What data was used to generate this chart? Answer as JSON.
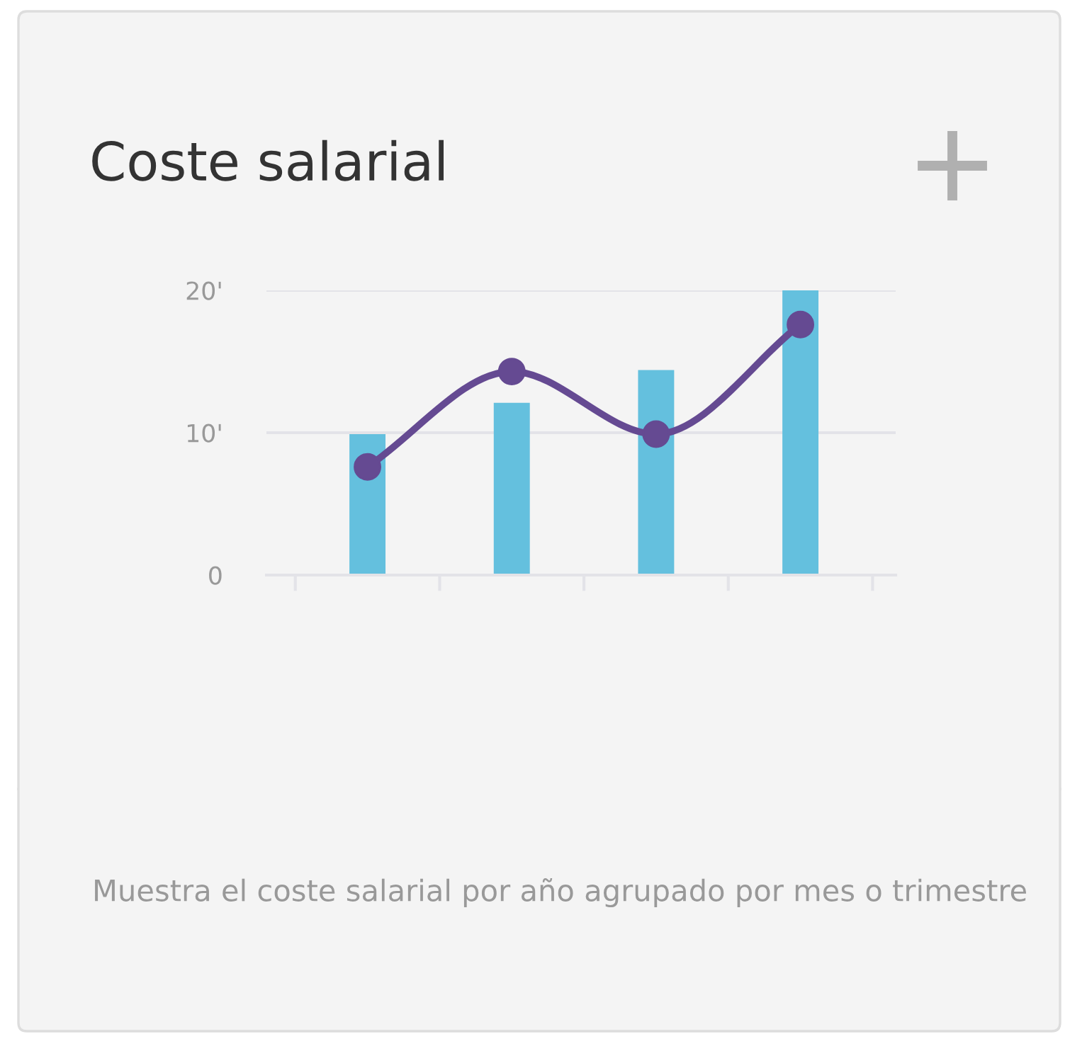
{
  "chart_data": {
    "type": "bar",
    "title": "Coste salarial",
    "categories": [
      null,
      null,
      null,
      null
    ],
    "series": [
      {
        "color": "#64c0de",
        "values": [
          9.9,
          12.1,
          14.4,
          20
        ]
      },
      {
        "type": "line",
        "color": "#654a92",
        "values": [
          7.6,
          14.3,
          9.9,
          17.6
        ],
        "marker": "circle"
      }
    ],
    "ylim": [
      0,
      20
    ],
    "yticks": [
      0,
      {
        "value": 10,
        "label": "10'"
      },
      {
        "value": 20,
        "label": "20'"
      }
    ],
    "grid": "y",
    "legend": false,
    "annotations": [
      "Muestra el coste salarial por año agrupado por mes o trimestre"
    ]
  }
}
